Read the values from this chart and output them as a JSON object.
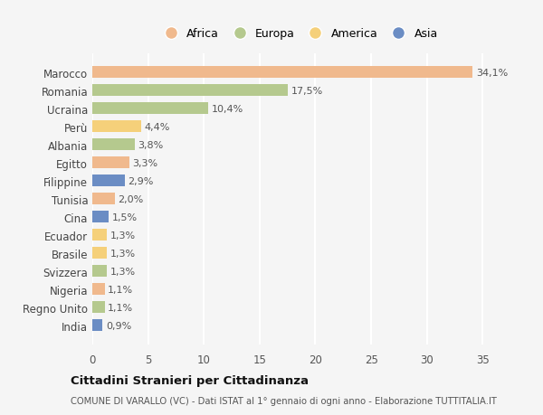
{
  "countries": [
    "Marocco",
    "Romania",
    "Ucraina",
    "Perù",
    "Albania",
    "Egitto",
    "Filippine",
    "Tunisia",
    "Cina",
    "Ecuador",
    "Brasile",
    "Svizzera",
    "Nigeria",
    "Regno Unito",
    "India"
  ],
  "values": [
    34.1,
    17.5,
    10.4,
    4.4,
    3.8,
    3.3,
    2.9,
    2.0,
    1.5,
    1.3,
    1.3,
    1.3,
    1.1,
    1.1,
    0.9
  ],
  "labels": [
    "34,1%",
    "17,5%",
    "10,4%",
    "4,4%",
    "3,8%",
    "3,3%",
    "2,9%",
    "2,0%",
    "1,5%",
    "1,3%",
    "1,3%",
    "1,3%",
    "1,1%",
    "1,1%",
    "0,9%"
  ],
  "continents": [
    "Africa",
    "Europa",
    "Europa",
    "America",
    "Europa",
    "Africa",
    "Asia",
    "Africa",
    "Asia",
    "America",
    "America",
    "Europa",
    "Africa",
    "Europa",
    "Asia"
  ],
  "continent_colors": {
    "Africa": "#F0B98D",
    "Europa": "#B5C98E",
    "America": "#F5D07A",
    "Asia": "#6B8DC4"
  },
  "legend_order": [
    "Africa",
    "Europa",
    "America",
    "Asia"
  ],
  "title": "Cittadini Stranieri per Cittadinanza",
  "subtitle": "COMUNE DI VARALLO (VC) - Dati ISTAT al 1° gennaio di ogni anno - Elaborazione TUTTITALIA.IT",
  "xlim": [
    0,
    37
  ],
  "xticks": [
    0,
    5,
    10,
    15,
    20,
    25,
    30,
    35
  ],
  "background_color": "#f5f5f5",
  "grid_color": "#ffffff"
}
